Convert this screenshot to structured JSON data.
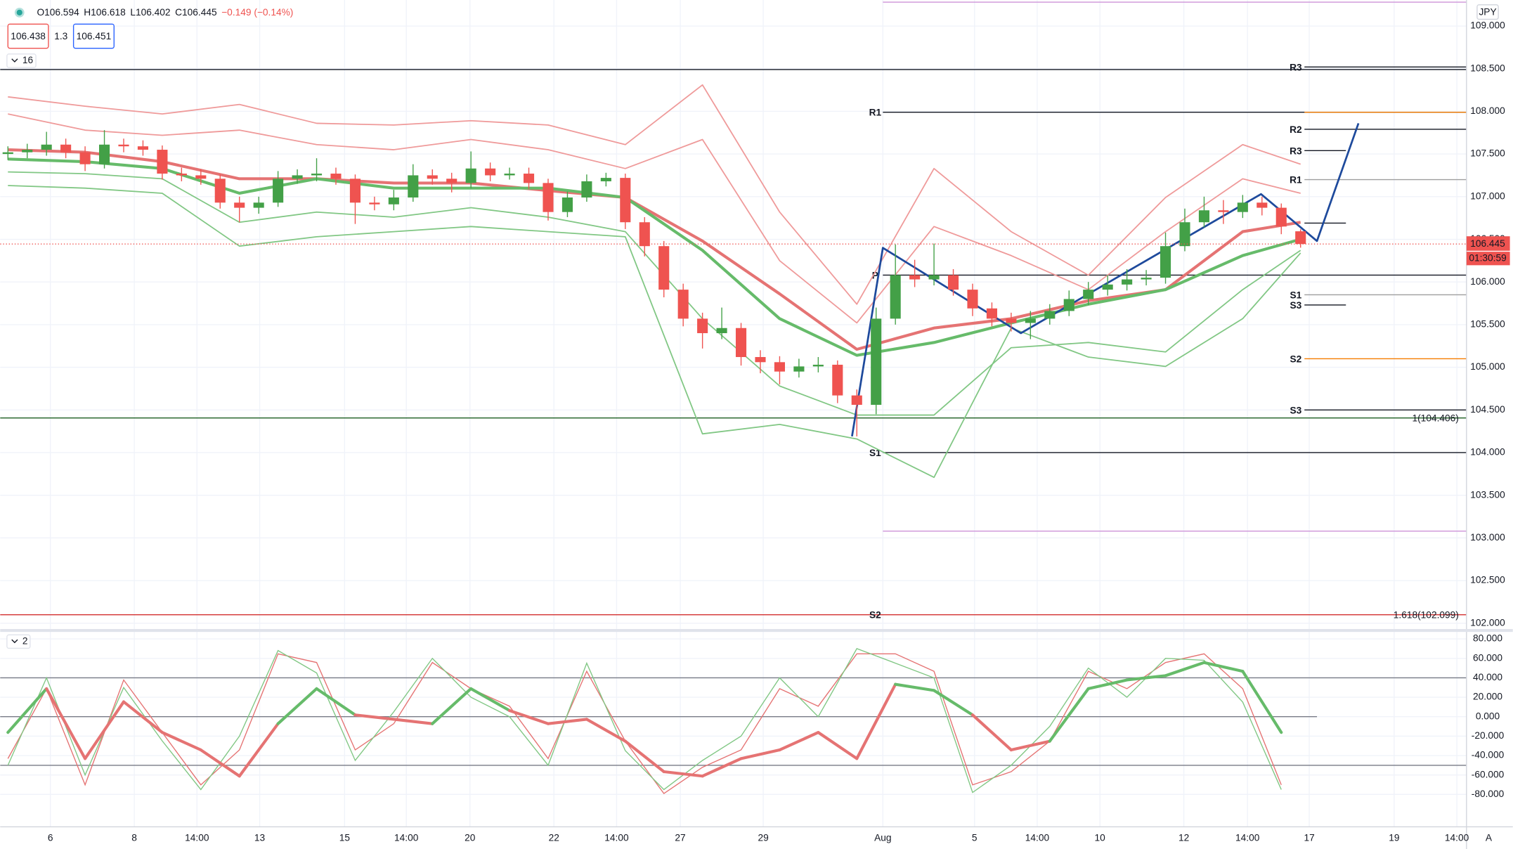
{
  "header": {
    "open": "O106.594",
    "high": "H106.618",
    "low": "L106.402",
    "close": "C106.445",
    "change": "−0.149 (−0.14%)",
    "bid": "106.438",
    "spread": "1.3",
    "ask": "106.451",
    "indicator_count": "16",
    "oscillator_count": "2",
    "currency": "JPY",
    "scale_button": "A"
  },
  "chart_data": [
    {
      "type": "candlestick",
      "xlim": [
        -0.4,
        75.6
      ],
      "ylim": [
        101.932,
        109.305
      ],
      "xticks": [
        {
          "value": 2.2,
          "label": "6"
        },
        {
          "value": 6.55,
          "label": "8"
        },
        {
          "value": 9.8,
          "label": "14:00"
        },
        {
          "value": 13.05,
          "label": "13"
        },
        {
          "value": 17.45,
          "label": "15"
        },
        {
          "value": 20.65,
          "label": "14:00"
        },
        {
          "value": 23.95,
          "label": "20"
        },
        {
          "value": 28.3,
          "label": "22"
        },
        {
          "value": 31.55,
          "label": "14:00"
        },
        {
          "value": 34.85,
          "label": "27"
        },
        {
          "value": 39.15,
          "label": "29"
        },
        {
          "value": 45.35,
          "label": "Aug"
        },
        {
          "value": 50.1,
          "label": "5"
        },
        {
          "value": 53.35,
          "label": "14:00"
        },
        {
          "value": 56.6,
          "label": "10"
        },
        {
          "value": 60.95,
          "label": "12"
        },
        {
          "value": 64.25,
          "label": "14:00"
        },
        {
          "value": 67.45,
          "label": "17"
        },
        {
          "value": 71.85,
          "label": "19"
        },
        {
          "value": 75.1,
          "label": "14:00"
        }
      ],
      "yticks": [
        {
          "value": 102,
          "label": "102.000"
        },
        {
          "value": 102.5,
          "label": "102.500"
        },
        {
          "value": 103,
          "label": "103.000"
        },
        {
          "value": 103.5,
          "label": "103.500"
        },
        {
          "value": 104,
          "label": "104.000"
        },
        {
          "value": 104.5,
          "label": "104.500"
        },
        {
          "value": 105,
          "label": "105.000"
        },
        {
          "value": 105.5,
          "label": "105.500"
        },
        {
          "value": 106,
          "label": "106.000"
        },
        {
          "value": 106.5,
          "label": "106.500"
        },
        {
          "value": 107,
          "label": "107.000"
        },
        {
          "value": 107.5,
          "label": "107.500"
        },
        {
          "value": 108,
          "label": "108.000"
        },
        {
          "value": 108.5,
          "label": "108.500"
        },
        {
          "value": 109,
          "label": "109.000"
        }
      ],
      "grid": true,
      "up_color": "#43a047",
      "down_color": "#ef5350",
      "open": [
        107.5,
        107.52,
        107.55,
        107.61,
        107.52,
        107.38,
        107.61,
        107.59,
        107.55,
        107.27,
        107.25,
        107.21,
        106.93,
        106.87,
        106.93,
        107.21,
        107.25,
        107.27,
        107.21,
        106.93,
        106.91,
        106.99,
        107.25,
        107.21,
        107.16,
        107.33,
        107.25,
        107.27,
        107.16,
        106.82,
        106.99,
        107.18,
        107.22,
        106.7,
        106.42,
        105.91,
        105.57,
        105.4,
        105.46,
        105.12,
        105.06,
        104.95,
        105.01,
        105.03,
        104.67,
        104.56,
        105.57,
        106.08,
        106.03,
        106.08,
        105.91,
        105.69,
        105.57,
        105.52,
        105.57,
        105.66,
        105.8,
        105.91,
        105.97,
        106.03,
        106.05,
        106.42,
        106.7,
        106.84,
        106.82,
        106.93,
        106.87,
        106.594
      ],
      "high": [
        107.59,
        107.62,
        107.76,
        107.68,
        107.59,
        107.78,
        107.68,
        107.66,
        107.6,
        107.34,
        107.32,
        107.26,
        107.0,
        107.0,
        107.3,
        107.32,
        107.45,
        107.34,
        107.26,
        107.0,
        107.08,
        107.38,
        107.32,
        107.28,
        107.53,
        107.4,
        107.34,
        107.34,
        107.21,
        107.06,
        107.26,
        107.28,
        107.27,
        106.76,
        106.48,
        105.98,
        105.64,
        105.7,
        105.52,
        105.2,
        105.13,
        105.1,
        105.12,
        105.08,
        104.74,
        105.7,
        106.44,
        106.26,
        106.45,
        106.15,
        105.98,
        105.76,
        105.64,
        105.66,
        105.74,
        105.9,
        106.0,
        106.08,
        106.15,
        106.14,
        106.58,
        106.86,
        107.0,
        106.96,
        107.02,
        107.0,
        106.92,
        106.618
      ],
      "low": [
        107.43,
        107.45,
        107.48,
        107.45,
        107.3,
        107.33,
        107.52,
        107.48,
        107.2,
        107.18,
        107.14,
        106.86,
        106.7,
        106.8,
        106.88,
        107.15,
        107.18,
        107.14,
        106.68,
        106.84,
        106.84,
        106.94,
        107.14,
        107.05,
        107.1,
        107.18,
        107.2,
        107.09,
        106.72,
        106.76,
        106.94,
        107.12,
        106.62,
        106.3,
        105.82,
        105.48,
        105.22,
        105.33,
        105.02,
        104.93,
        104.8,
        104.88,
        104.94,
        104.58,
        104.19,
        104.45,
        105.5,
        105.94,
        105.96,
        105.84,
        105.6,
        105.48,
        105.42,
        105.33,
        105.5,
        105.6,
        105.73,
        105.84,
        105.9,
        105.96,
        105.98,
        106.36,
        106.64,
        106.68,
        106.75,
        106.78,
        106.56,
        106.402
      ],
      "close": [
        107.52,
        107.55,
        107.61,
        107.52,
        107.38,
        107.61,
        107.59,
        107.55,
        107.27,
        107.25,
        107.21,
        106.93,
        106.87,
        106.93,
        107.21,
        107.25,
        107.27,
        107.21,
        106.93,
        106.91,
        106.99,
        107.25,
        107.21,
        107.16,
        107.33,
        107.25,
        107.27,
        107.16,
        106.82,
        106.99,
        107.18,
        107.22,
        106.7,
        106.42,
        105.91,
        105.57,
        105.4,
        105.46,
        105.12,
        105.06,
        104.95,
        105.01,
        105.03,
        104.67,
        104.56,
        105.57,
        106.08,
        106.03,
        106.08,
        105.91,
        105.69,
        105.57,
        105.52,
        105.57,
        105.66,
        105.8,
        105.91,
        105.97,
        106.03,
        106.05,
        106.42,
        106.7,
        106.84,
        106.82,
        106.93,
        106.87,
        106.65,
        106.445
      ],
      "lines": [
        {
          "color": "#ef9a9a",
          "width": 1.3,
          "x": [
            0,
            4,
            8,
            12,
            16,
            20,
            24,
            28,
            32,
            36,
            40,
            44,
            48,
            52,
            56,
            60,
            64,
            67
          ],
          "values": [
            108.17,
            108.06,
            107.97,
            108.08,
            107.86,
            107.84,
            107.89,
            107.84,
            107.61,
            108.31,
            106.82,
            105.74,
            107.33,
            106.59,
            106.08,
            106.99,
            107.61,
            107.38
          ]
        },
        {
          "color": "#ef9a9a",
          "width": 1.3,
          "x": [
            0,
            4,
            8,
            12,
            16,
            20,
            24,
            28,
            32,
            36,
            40,
            44,
            48,
            52,
            56,
            60,
            64,
            67
          ],
          "values": [
            107.97,
            107.78,
            107.72,
            107.78,
            107.61,
            107.55,
            107.67,
            107.55,
            107.33,
            107.67,
            106.25,
            105.52,
            106.65,
            106.31,
            105.91,
            106.59,
            107.21,
            107.04
          ]
        },
        {
          "color": "#e57373",
          "width": 3,
          "x": [
            0,
            4,
            8,
            12,
            16,
            20,
            24,
            28,
            32,
            36,
            40,
            44,
            48,
            52,
            56,
            60,
            64,
            67
          ],
          "values": [
            107.55,
            107.52,
            107.41,
            107.21,
            107.21,
            107.16,
            107.16,
            107.07,
            106.99,
            106.48,
            105.86,
            105.21,
            105.46,
            105.57,
            105.78,
            105.91,
            106.59,
            106.7
          ]
        },
        {
          "color": "#66bb6a",
          "width": 3,
          "x": [
            0,
            4,
            8,
            12,
            16,
            20,
            24,
            28,
            32,
            36,
            40,
            44,
            48,
            52,
            56,
            60,
            64,
            67
          ],
          "values": [
            107.44,
            107.41,
            107.33,
            107.04,
            107.21,
            107.1,
            107.1,
            107.1,
            106.99,
            106.37,
            105.57,
            105.14,
            105.29,
            105.52,
            105.74,
            105.91,
            106.31,
            106.5
          ]
        },
        {
          "color": "#81c784",
          "width": 1.3,
          "x": [
            0,
            4,
            8,
            12,
            16,
            20,
            24,
            28,
            32,
            36,
            40,
            44,
            48,
            52,
            56,
            60,
            64,
            67
          ],
          "values": [
            107.29,
            107.27,
            107.21,
            106.7,
            106.82,
            106.76,
            106.87,
            106.76,
            106.59,
            105.57,
            104.78,
            104.44,
            104.44,
            105.23,
            105.29,
            105.18,
            105.91,
            106.37
          ]
        },
        {
          "color": "#81c784",
          "width": 1.3,
          "x": [
            0,
            4,
            8,
            12,
            16,
            20,
            24,
            28,
            32,
            36,
            40,
            44,
            48,
            52,
            56,
            60,
            64,
            67
          ],
          "values": [
            107.13,
            107.1,
            107.04,
            106.42,
            106.53,
            106.59,
            106.65,
            106.59,
            106.53,
            104.22,
            104.33,
            104.16,
            103.71,
            105.46,
            105.12,
            105.01,
            105.57,
            106.34
          ]
        },
        {
          "color": "#1e4a9c",
          "width": 2,
          "x": [
            43.75,
            45.35,
            52.5,
            64.95,
            67.85,
            70.0
          ],
          "values": [
            104.19,
            106.4,
            105.4,
            107.03,
            106.48,
            107.86
          ]
        }
      ],
      "levels": [
        {
          "value": 108.49,
          "color": "#131722",
          "extent": "all"
        },
        {
          "label": "R3",
          "value": 108.52,
          "color": "#131722",
          "extent": "right",
          "label_at": "right"
        },
        {
          "label": "R1",
          "value": 107.99,
          "color": "#131722",
          "extent": "august",
          "label_at": "august"
        },
        {
          "value": 107.99,
          "color": "#f57c00",
          "extent": "right"
        },
        {
          "label": "R2",
          "value": 107.79,
          "color": "#131722",
          "extent": "right",
          "label_at": "right"
        },
        {
          "label": "R3",
          "value": 107.54,
          "color": "#131722",
          "extent": "short",
          "label_at": "right"
        },
        {
          "label": "R1",
          "value": 107.2,
          "color": "#9e9e9e",
          "extent": "right",
          "label_at": "right"
        },
        {
          "value": 106.69,
          "color": "#131722",
          "extent": "short"
        },
        {
          "label": "P",
          "value": 106.08,
          "color": "#131722",
          "extent": "august",
          "label_at": "august"
        },
        {
          "label": "S1",
          "value": 105.85,
          "color": "#9e9e9e",
          "extent": "right",
          "label_at": "right"
        },
        {
          "label": "S3",
          "value": 105.73,
          "color": "#131722",
          "extent": "short",
          "label_at": "right"
        },
        {
          "label": "S2",
          "value": 105.1,
          "color": "#f57c00",
          "extent": "right",
          "label_at": "right"
        },
        {
          "label": "S3",
          "value": 104.5,
          "color": "#131722",
          "extent": "right",
          "label_at": "right"
        },
        {
          "value": 104.406,
          "color": "#1b5e20",
          "extent": "all",
          "tag": "1(104.406)"
        },
        {
          "label": "S1",
          "value": 104.0,
          "color": "#131722",
          "extent": "august",
          "label_at": "august"
        },
        {
          "value": 103.08,
          "color": "#ce93d8",
          "extent": "august"
        },
        {
          "value": 109.28,
          "color": "#ce93d8",
          "extent": "august"
        },
        {
          "label": "S2",
          "value": 102.099,
          "color": "#d32f2f",
          "extent": "all",
          "label_at": "august",
          "tag": "1.618(102.099)"
        }
      ],
      "last_price": {
        "value": 106.445,
        "color": "#ef5350",
        "timer": "01:30:59"
      }
    },
    {
      "type": "oscillator",
      "xlim": [
        -0.4,
        75.6
      ],
      "ylim": [
        -113.3,
        87.2
      ],
      "yticks": [
        {
          "value": 80,
          "label": "80.000"
        },
        {
          "value": 60,
          "label": "60.000"
        },
        {
          "value": 40,
          "label": "40.000"
        },
        {
          "value": 20,
          "label": "20.000"
        },
        {
          "value": 0,
          "label": "0.000"
        },
        {
          "value": -20,
          "label": "-20.000"
        },
        {
          "value": -40,
          "label": "-40.000"
        },
        {
          "value": -60,
          "label": "-60.000"
        },
        {
          "value": -80,
          "label": "-80.000"
        }
      ],
      "hlines": [
        40,
        0,
        -50
      ],
      "x": [
        0,
        2,
        4,
        6,
        8,
        10,
        12,
        14,
        16,
        18,
        20,
        22,
        24,
        26,
        28,
        30,
        32,
        34,
        36,
        38,
        40,
        42,
        44,
        46,
        48,
        50,
        52,
        54,
        56,
        58,
        60,
        62,
        64,
        66
      ],
      "main": {
        "up_color": "#66bb6a",
        "down_color": "#e57373",
        "color_split": 0,
        "width": 3,
        "values": [
          -16.2,
          28.8,
          -43.1,
          15.3,
          -16.2,
          -34.2,
          -61.1,
          -7.2,
          28.8,
          1.8,
          -2.7,
          -7.2,
          28.8,
          6.3,
          -7.2,
          -2.7,
          -25.2,
          -56.6,
          -61.1,
          -43.1,
          -34.2,
          -16.2,
          -43.1,
          33.3,
          27.0,
          1.8,
          -34.2,
          -25.2,
          28.8,
          37.8,
          42.2,
          55.7,
          46.7,
          -16.2
        ]
      },
      "series": [
        {
          "color": "#e57373",
          "values": [
            -43.1,
            28.8,
            -70.1,
            37.8,
            -16.2,
            -70.1,
            -34.2,
            64.7,
            55.7,
            -34.2,
            -7.2,
            55.7,
            28.8,
            10.8,
            -43.1,
            46.7,
            -25.2,
            -79.1,
            -52.1,
            -34.2,
            28.8,
            10.8,
            64.7,
            64.7,
            46.7,
            -70.1,
            -56.6,
            -25.2,
            46.7,
            28.8,
            55.7,
            64.7,
            28.8,
            -70.1
          ]
        },
        {
          "color": "#81c784",
          "values": [
            -50,
            40,
            -60,
            30,
            -25,
            -75,
            -20,
            68,
            45,
            -45,
            5,
            60,
            20,
            0,
            -50,
            55,
            -35,
            -75,
            -45,
            -20,
            40,
            0,
            70,
            55,
            40,
            -78,
            -50,
            -10,
            50,
            20,
            60,
            58,
            15,
            -75
          ]
        }
      ]
    }
  ]
}
